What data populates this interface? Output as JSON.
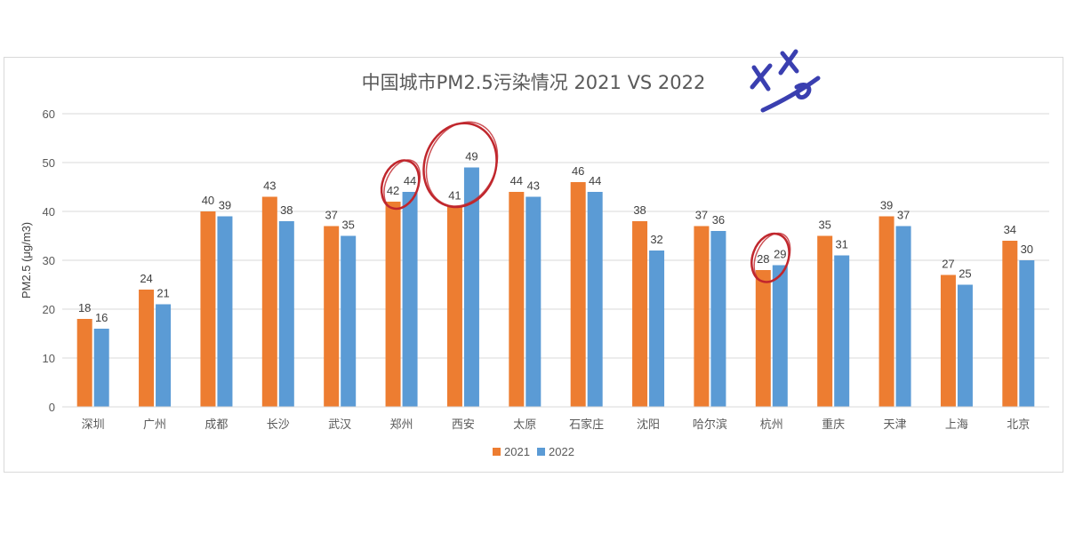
{
  "chart_data": {
    "type": "bar",
    "title": "中国城市PM2.5污染情况  2021 VS 2022",
    "ylabel": "PM2.5 (μg/m3)",
    "xlabel": "",
    "ylim": [
      0,
      60
    ],
    "yticks": [
      "0",
      "10",
      "20",
      "30",
      "40",
      "50",
      "60"
    ],
    "grid": true,
    "legend_position": "bottom",
    "categories": [
      "深圳",
      "广州",
      "成都",
      "长沙",
      "武汉",
      "郑州",
      "西安",
      "太原",
      "石家庄",
      "沈阳",
      "哈尔滨",
      "杭州",
      "重庆",
      "天津",
      "上海",
      "北京"
    ],
    "series": [
      {
        "name": "2021",
        "color": "#ed7d31",
        "values": [
          18,
          24,
          40,
          43,
          37,
          42,
          41,
          44,
          46,
          38,
          37,
          28,
          35,
          39,
          27,
          34
        ]
      },
      {
        "name": "2022",
        "color": "#5b9bd5",
        "values": [
          16,
          21,
          39,
          38,
          35,
          44,
          49,
          43,
          44,
          32,
          36,
          29,
          31,
          37,
          25,
          30
        ]
      }
    ],
    "annotations": {
      "highlight_color": "#c0272d",
      "circled_categories": [
        "郑州",
        "西安",
        "杭州"
      ],
      "mark_color": "#3a3fb0",
      "mark_icon": "handwritten-cross-smiley-icon"
    }
  }
}
